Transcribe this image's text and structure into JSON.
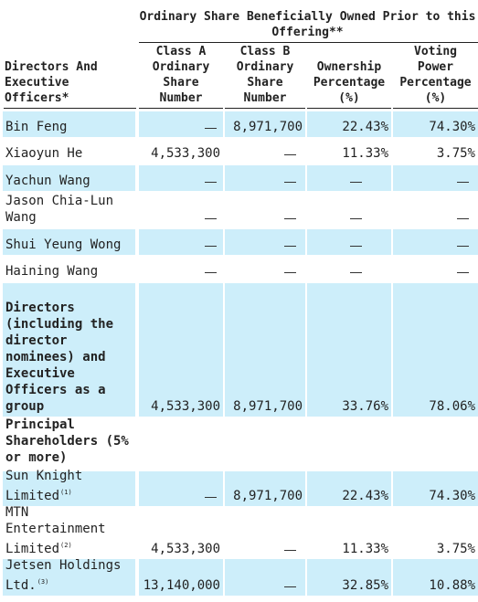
{
  "header": {
    "super": "Ordinary Share Beneficially Owned Prior to this Offering**",
    "directors": "Directors And Executive Officers*",
    "class_a": "Class A Ordinary Share Number",
    "class_b": "Class B Ordinary Share Number",
    "ownership": "Ownership Percentage (%)",
    "voting": "Voting Power Percentage (%)"
  },
  "rows": [
    {
      "name": "Bin Feng",
      "class_a": "",
      "class_b": "8,971,700",
      "ownership": "22.43%",
      "voting": "74.30%"
    },
    {
      "name": "Xiaoyun He",
      "class_a": "4,533,300",
      "class_b": "",
      "ownership": "11.33%",
      "voting": "3.75%"
    },
    {
      "name": "Yachun Wang",
      "class_a": "",
      "class_b": "",
      "ownership": "",
      "voting": ""
    },
    {
      "name": "Jason Chia-Lun Wang",
      "class_a": "",
      "class_b": "",
      "ownership": "",
      "voting": ""
    },
    {
      "name": "Shui Yeung Wong",
      "class_a": "",
      "class_b": "",
      "ownership": "",
      "voting": ""
    },
    {
      "name": "Haining Wang",
      "class_a": "",
      "class_b": "",
      "ownership": "",
      "voting": ""
    },
    {
      "name": "Directors (including the director nominees) and Executive Officers as a group",
      "class_a": "4,533,300",
      "class_b": "8,971,700",
      "ownership": "33.76%",
      "voting": "78.06%"
    },
    {
      "name": "Principal Shareholders (5% or more)",
      "class_a": "",
      "class_b": "",
      "ownership": "",
      "voting": ""
    },
    {
      "name": "Sun Knight Limited",
      "note": "(1)",
      "class_a": "",
      "class_b": "8,971,700",
      "ownership": "22.43%",
      "voting": "74.30%"
    },
    {
      "name": "MTN Entertainment Limited",
      "note": "(2)",
      "class_a": "4,533,300",
      "class_b": "",
      "ownership": "11.33%",
      "voting": "3.75%"
    },
    {
      "name": "Jetsen Holdings Ltd.",
      "note": "(3)",
      "class_a": "13,140,000",
      "class_b": "",
      "ownership": "32.85%",
      "voting": "10.88%"
    }
  ]
}
